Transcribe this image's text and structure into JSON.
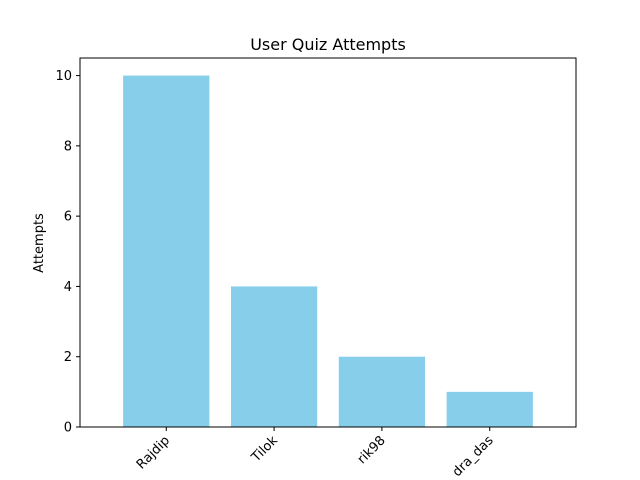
{
  "chart_data": {
    "type": "bar",
    "title": "User Quiz Attempts",
    "xlabel": "",
    "ylabel": "Attempts",
    "categories": [
      "Rajdip",
      "Tilok",
      "rik98",
      "dra_das"
    ],
    "values": [
      10,
      4,
      2,
      1
    ],
    "ylim": [
      0,
      10.5
    ],
    "yticks": [
      0,
      2,
      4,
      6,
      8,
      10
    ],
    "bar_color": "#87CEEB",
    "grid": false,
    "legend": "none"
  }
}
